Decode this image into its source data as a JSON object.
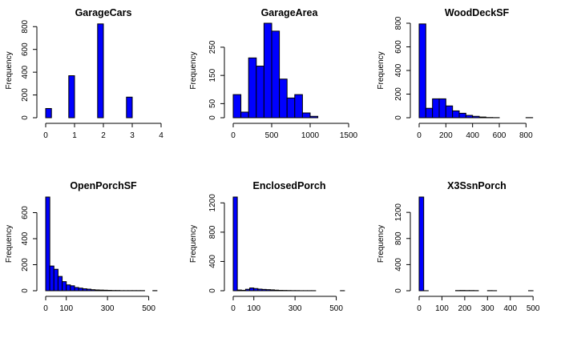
{
  "chart_data": [
    {
      "type": "bar",
      "title": "GarageCars",
      "ylabel": "Frequency",
      "xlabel": "",
      "bin_edges": [
        0,
        0.2,
        0.4,
        0.6,
        0.8,
        1.0,
        1.2,
        1.4,
        1.6,
        1.8,
        2.0,
        2.2,
        2.4,
        2.6,
        2.8,
        3.0
      ],
      "values": [
        81,
        0,
        0,
        0,
        369,
        0,
        0,
        0,
        0,
        824,
        0,
        0,
        0,
        0,
        181
      ],
      "xlim": [
        0,
        4
      ],
      "ylim": [
        0,
        830
      ],
      "xticks": [
        0,
        1,
        2,
        3,
        4
      ],
      "yticks": [
        0,
        200,
        400,
        600,
        800
      ]
    },
    {
      "type": "bar",
      "title": "GarageArea",
      "ylabel": "Frequency",
      "xlabel": "",
      "bin_edges": [
        0,
        100,
        200,
        300,
        400,
        500,
        600,
        700,
        800,
        900,
        1000,
        1100,
        1200,
        1300,
        1400
      ],
      "values": [
        82,
        20,
        212,
        183,
        335,
        307,
        137,
        70,
        82,
        17,
        5,
        0,
        0,
        0
      ],
      "xlim": [
        0,
        1500
      ],
      "ylim": [
        0,
        335
      ],
      "xticks": [
        0,
        500,
        1000,
        1500
      ],
      "yticks": [
        0,
        50,
        150,
        250
      ]
    },
    {
      "type": "bar",
      "title": "WoodDeckSF",
      "ylabel": "Frequency",
      "xlabel": "",
      "bin_edges": [
        0,
        50,
        100,
        150,
        200,
        250,
        300,
        350,
        400,
        450,
        500,
        550,
        600,
        650,
        700,
        750,
        800,
        850
      ],
      "values": [
        794,
        80,
        160,
        160,
        100,
        58,
        38,
        20,
        12,
        6,
        2,
        1,
        0,
        0,
        0,
        0,
        1
      ],
      "xlim": [
        0,
        870
      ],
      "ylim": [
        0,
        800
      ],
      "xticks": [
        0,
        200,
        400,
        600,
        800
      ],
      "yticks": [
        0,
        200,
        400,
        600,
        800
      ]
    },
    {
      "type": "bar",
      "title": "OpenPorchSF",
      "ylabel": "Frequency",
      "xlabel": "",
      "bin_edges": [
        0,
        20,
        40,
        60,
        80,
        100,
        120,
        140,
        160,
        180,
        200,
        220,
        240,
        260,
        280,
        300,
        320,
        340,
        360,
        380,
        400,
        420,
        440,
        460,
        480,
        500,
        520,
        540
      ],
      "values": [
        720,
        190,
        165,
        110,
        70,
        45,
        38,
        25,
        20,
        15,
        12,
        8,
        6,
        5,
        4,
        3,
        2,
        2,
        1,
        1,
        1,
        1,
        1,
        1,
        0,
        0,
        1
      ],
      "xlim": [
        0,
        560
      ],
      "ylim": [
        0,
        720
      ],
      "xticks": [
        0,
        100,
        300,
        500
      ],
      "yticks": [
        0,
        200,
        400,
        600
      ]
    },
    {
      "type": "bar",
      "title": "EnclosedPorch",
      "ylabel": "Frequency",
      "xlabel": "",
      "bin_edges": [
        0,
        20,
        40,
        60,
        80,
        100,
        120,
        140,
        160,
        180,
        200,
        220,
        240,
        260,
        280,
        300,
        320,
        340,
        360,
        380,
        400,
        420,
        440,
        460,
        480,
        500,
        520,
        540
      ],
      "values": [
        1280,
        10,
        6,
        20,
        38,
        30,
        22,
        18,
        15,
        12,
        8,
        5,
        4,
        3,
        2,
        2,
        1,
        1,
        1,
        1,
        0,
        0,
        0,
        0,
        0,
        0,
        1
      ],
      "xlim": [
        0,
        560
      ],
      "ylim": [
        0,
        1280
      ],
      "xticks": [
        0,
        100,
        300,
        500
      ],
      "yticks": [
        0,
        400,
        800,
        1200
      ]
    },
    {
      "type": "bar",
      "title": "X3SsnPorch",
      "ylabel": "Frequency",
      "xlabel": "",
      "bin_edges": [
        0,
        20,
        40,
        60,
        80,
        100,
        120,
        140,
        160,
        180,
        200,
        220,
        240,
        260,
        280,
        300,
        320,
        340,
        360,
        380,
        400,
        420,
        440,
        460,
        480,
        500
      ],
      "values": [
        1435,
        1,
        0,
        0,
        0,
        0,
        0,
        0,
        3,
        4,
        3,
        3,
        2,
        0,
        0,
        2,
        1,
        0,
        0,
        0,
        0,
        0,
        0,
        0,
        1
      ],
      "xlim": [
        0,
        510
      ],
      "ylim": [
        0,
        1435
      ],
      "xticks": [
        0,
        100,
        200,
        300,
        400,
        500
      ],
      "yticks": [
        0,
        400,
        800,
        1200
      ]
    }
  ]
}
